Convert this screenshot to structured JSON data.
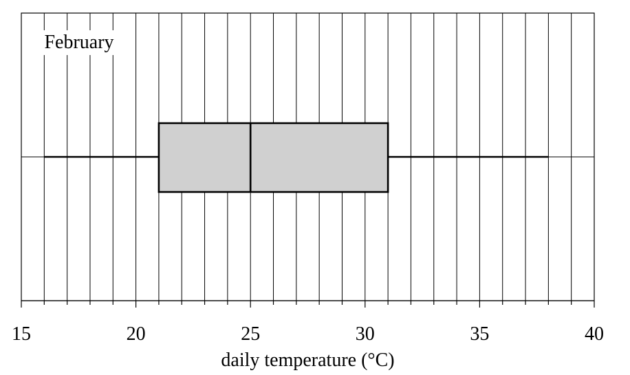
{
  "chart_data": {
    "type": "boxplot",
    "panel_label": "February",
    "xlabel": "daily temperature (°C)",
    "xlim": [
      15,
      40
    ],
    "x_ticks": [
      15,
      20,
      25,
      30,
      35,
      40
    ],
    "x_tick_labels": [
      "15",
      "20",
      "25",
      "30",
      "35",
      "40"
    ],
    "minor_tick_step": 1,
    "grid": "vertical lines at every 1 °C",
    "box": {
      "min": 16,
      "q1": 21,
      "median": 25,
      "q3": 31,
      "max": 38
    },
    "colors": {
      "box_fill": "#d0d0d0",
      "lines": "#000000"
    }
  }
}
